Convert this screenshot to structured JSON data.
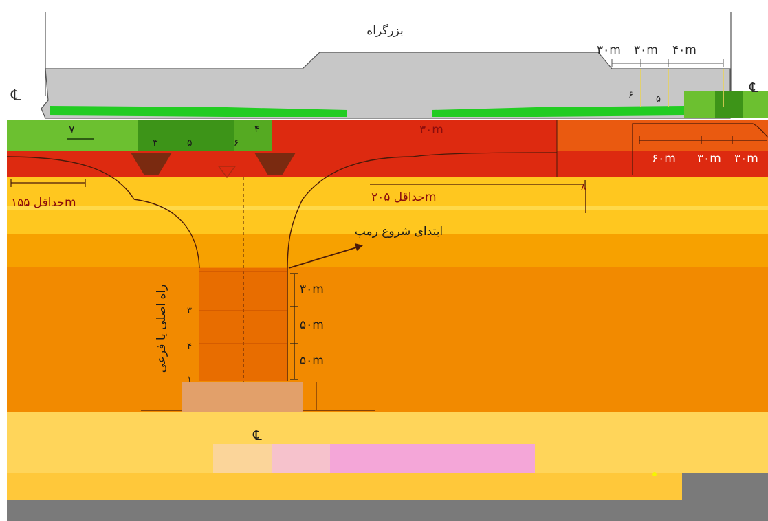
{
  "diagram": {
    "title": "بزرگراه",
    "centerline_symbol": "℄",
    "palette": {
      "background": "#ffffff",
      "highway": "#c7c7c7",
      "green_strip": "#22cc22",
      "green_band": "#55aa22",
      "red_band": "#dd2a10",
      "orange": "#f28a00",
      "orange_dark": "#e86d00",
      "yellow": "#ffc83a",
      "yellow_light": "#ffd55a",
      "pink": "#f4a6d8",
      "gray_block": "#7a7a7a"
    },
    "top_right_dimensions": [
      "۳۰m",
      "۳۰m",
      "۴۰m"
    ],
    "right_band_dimensions": [
      "۶۰m",
      "۳۰m",
      "۳۰m"
    ],
    "ramp_marks_top": [
      "۶",
      "۵"
    ],
    "left_band_marks": [
      "۳",
      "۵",
      "۴",
      "۶"
    ],
    "left_band_extra": "۷",
    "min_distance_left": "حداقل ۱۵۵m",
    "min_distance_center": "حداقل ۲۰۵m",
    "ramp_start_label": "ابتدای شروع رمپ",
    "vertical_label": "راه اصلی یا فرعی",
    "segment_numbers": [
      "۳",
      "۴",
      "۱"
    ],
    "segment_dimensions": [
      "۳۰m",
      "۵۰m",
      "۵۰m"
    ],
    "mid_dimension": "۳۰m",
    "right_arrow_number": "۸",
    "bottom_centerline_symbol": "℄"
  }
}
